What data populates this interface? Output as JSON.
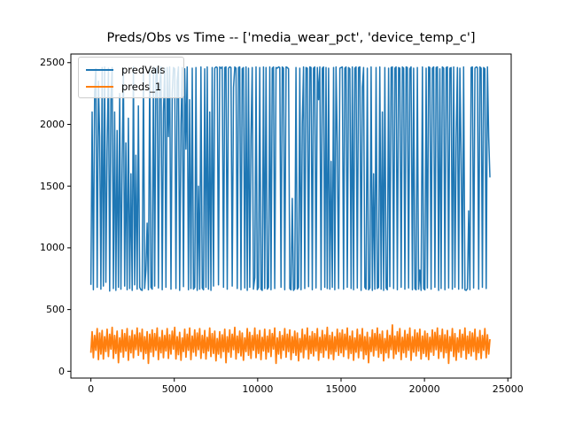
{
  "figure": {
    "title": "Preds/Obs vs Time -- ['media_wear_pct', 'device_temp_c']",
    "background_color": "#ffffff",
    "spine_color": "#000000"
  },
  "legend": {
    "entries": [
      {
        "label": "predVals",
        "color": "#1f77b4"
      },
      {
        "label": "preds_1",
        "color": "#ff7f0e"
      }
    ]
  },
  "chart_data": {
    "type": "line",
    "title": "Preds/Obs vs Time -- ['media_wear_pct', 'device_temp_c']",
    "xlabel": "",
    "ylabel": "",
    "grid": false,
    "legend_position": "upper left",
    "xlim": [
      -1200,
      25200
    ],
    "ylim": [
      -55,
      2570
    ],
    "x_ticks": [
      0,
      5000,
      10000,
      15000,
      20000,
      25000
    ],
    "y_ticks": [
      0,
      500,
      1000,
      1500,
      2000,
      2500
    ],
    "x_start": 0,
    "x_step": 75,
    "series": [
      {
        "name": "predVals",
        "color": "#1f77b4",
        "linewidth": 1.5,
        "values": [
          700,
          2100,
          660,
          2250,
          2450,
          680,
          2350,
          1900,
          665,
          2460,
          690,
          2465,
          720,
          1800,
          2455,
          650,
          2200,
          2460,
          670,
          2100,
          655,
          1950,
          680,
          2250,
          665,
          1700,
          2455,
          690,
          1850,
          660,
          2050,
          670,
          1600,
          655,
          2465,
          700,
          1750,
          665,
          2150,
          680,
          660,
          655,
          2460,
          670,
          820,
          1200,
          660,
          2455,
          680,
          665,
          2465,
          690,
          2450,
          2460,
          675,
          2300,
          2465,
          660,
          2100,
          2455,
          680,
          2460,
          1900,
          2465,
          665,
          2250,
          2460,
          2450,
          670,
          2350,
          2465,
          655,
          2000,
          2460,
          685,
          2450,
          1800,
          2465,
          660,
          2200,
          670,
          2455,
          665,
          680,
          2460,
          655,
          1500,
          665,
          2465,
          675,
          660,
          2450,
          680,
          2465,
          665,
          2100,
          655,
          2460,
          690,
          2455,
          2465,
          2460,
          700,
          2465,
          2455,
          2465,
          680,
          2460,
          2465,
          665,
          2455,
          2465,
          2460,
          690,
          2300,
          2465,
          2455,
          670,
          2460,
          2465,
          660,
          2450,
          2460,
          675,
          2465,
          655,
          2455,
          680,
          1900,
          2460,
          665,
          760,
          2465,
          660,
          680,
          2460,
          665,
          655,
          2465,
          670,
          2460,
          665,
          680,
          2465,
          660,
          2455,
          2465,
          670,
          2460,
          2455,
          2465,
          2460,
          680,
          2465,
          2455,
          660,
          2465,
          2460,
          2450,
          670,
          660,
          1400,
          655,
          670,
          2460,
          665,
          680,
          2455,
          660,
          2000,
          2465,
          670,
          2460,
          2455,
          685,
          2465,
          2460,
          660,
          2455,
          2465,
          675,
          2460,
          2200,
          2465,
          660,
          2455,
          2465,
          680,
          2460,
          670,
          2455,
          665,
          1700,
          680,
          2460,
          660,
          2465,
          1850,
          670,
          2455,
          2460,
          2465,
          665,
          2455,
          2465,
          680,
          2460,
          2450,
          670,
          2465,
          660,
          2455,
          2465,
          675,
          2460,
          2465,
          655,
          2300,
          2460,
          680,
          665,
          2455,
          660,
          675,
          2465,
          655,
          1600,
          665,
          2460,
          670,
          680,
          2465,
          665,
          2100,
          655,
          2460,
          675,
          660,
          2455,
          685,
          2460,
          2465,
          670,
          2455,
          2465,
          660,
          2460,
          2455,
          680,
          2465,
          2455,
          665,
          2465,
          2460,
          675,
          2450,
          2465,
          660,
          2455,
          670,
          660,
          2460,
          665,
          820,
          655,
          2465,
          670,
          660,
          2455,
          675,
          2465,
          2460,
          665,
          2455,
          2465,
          680,
          2460,
          2465,
          655,
          2450,
          670,
          2465,
          2455,
          660,
          2460,
          2465,
          675,
          2455,
          2460,
          665,
          2465,
          680,
          1900,
          2460,
          665,
          2455,
          1750,
          670,
          2465,
          660,
          655,
          670,
          1300,
          660,
          2460,
          2465,
          675,
          2455,
          2465,
          2460,
          665,
          2465,
          2455,
          680,
          2460,
          2450,
          670,
          2465,
          1900,
          1570
        ]
      },
      {
        "name": "preds_1",
        "color": "#ff7f0e",
        "linewidth": 1.8,
        "values": [
          150,
          320,
          110,
          290,
          170,
          345,
          95,
          310,
          140,
          330,
          100,
          280,
          160,
          340,
          120,
          300,
          180,
          355,
          105,
          290,
          145,
          325,
          70,
          270,
          155,
          335,
          115,
          305,
          165,
          345,
          90,
          285,
          150,
          330,
          110,
          295,
          175,
          350,
          130,
          310,
          160,
          340,
          100,
          280,
          145,
          320,
          65,
          300,
          155,
          335,
          120,
          305,
          170,
          350,
          95,
          275,
          150,
          330,
          110,
          290,
          165,
          345,
          105,
          295,
          140,
          325,
          180,
          355,
          100,
          280,
          135,
          315,
          90,
          270,
          160,
          340,
          115,
          300,
          170,
          350,
          95,
          285,
          155,
          335,
          125,
          310,
          175,
          345,
          105,
          290,
          150,
          330,
          100,
          275,
          165,
          350,
          120,
          305,
          145,
          325,
          85,
          265,
          140,
          320,
          110,
          295,
          160,
          340,
          70,
          280,
          155,
          335,
          115,
          300,
          175,
          355,
          100,
          285,
          150,
          325,
          125,
          310,
          90,
          270,
          160,
          345,
          130,
          315,
          105,
          290,
          170,
          350,
          110,
          295,
          145,
          330,
          95,
          275,
          165,
          340,
          100,
          285,
          155,
          335,
          120,
          305,
          180,
          350,
          65,
          270,
          140,
          320,
          105,
          290,
          170,
          345,
          115,
          300,
          160,
          335,
          95,
          280,
          150,
          325,
          130,
          310,
          85,
          265,
          155,
          340,
          110,
          295,
          175,
          350,
          100,
          285,
          145,
          320,
          125,
          305,
          165,
          345,
          90,
          275,
          150,
          330,
          115,
          295,
          170,
          355,
          105,
          290,
          140,
          315,
          95,
          280,
          160,
          340,
          130,
          310,
          150,
          335,
          120,
          300,
          175,
          350,
          105,
          285,
          145,
          325,
          90,
          270,
          155,
          340,
          110,
          295,
          165,
          345,
          100,
          280,
          135,
          315,
          70,
          275,
          160,
          335,
          125,
          305,
          170,
          350,
          115,
          300,
          145,
          325,
          85,
          265,
          150,
          330,
          110,
          290,
          175,
          375,
          105,
          285,
          140,
          320,
          160,
          345,
          95,
          275,
          150,
          330,
          115,
          300,
          170,
          350,
          90,
          280,
          155,
          335,
          125,
          310,
          165,
          340,
          100,
          285,
          145,
          325,
          120,
          305,
          95,
          275,
          155,
          335,
          130,
          315,
          175,
          350,
          105,
          290,
          160,
          340,
          110,
          295,
          150,
          330,
          65,
          280,
          165,
          345,
          120,
          305,
          90,
          270,
          155,
          335,
          115,
          300,
          170,
          350,
          100,
          285,
          145,
          320,
          125,
          310,
          160,
          340,
          95,
          275,
          150,
          330,
          105,
          290,
          170,
          345,
          110,
          295,
          140,
          260
        ]
      }
    ]
  }
}
